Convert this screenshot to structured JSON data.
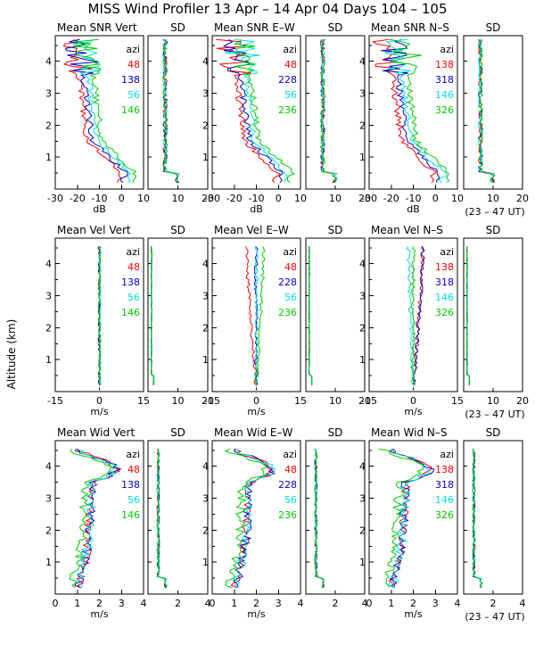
{
  "title": "MISS Wind Profiler  13 Apr – 14 Apr 04 Days 104 – 105",
  "ylabel": "Altitude (km)",
  "ut_note": "(23 – 47 UT)",
  "legend_header": "azi",
  "colors": {
    "c1": "#ff0000",
    "c2": "#0000cc",
    "c3": "#00e0e0",
    "c4": "#00cc00",
    "axis": "#000000"
  },
  "chart_data": [
    {
      "type": "line",
      "panel": "snr-vert",
      "title": "Mean SNR Vert",
      "xlabel": "dB",
      "xlim": [
        -30,
        10
      ],
      "xticks": [
        -30,
        -20,
        -10,
        0,
        10
      ],
      "ylim": [
        0,
        4.8
      ],
      "yticks": [
        1,
        2,
        3,
        4
      ],
      "legend": [
        "48",
        "138",
        "56",
        "146"
      ],
      "shape": "snr",
      "sd": {
        "title": "SD",
        "xlim": [
          0,
          20
        ],
        "xticks": [
          10,
          20
        ],
        "base": 5
      }
    },
    {
      "type": "line",
      "panel": "snr-ew",
      "title": "Mean SNR E–W",
      "xlabel": "dB",
      "xlim": [
        -30,
        10
      ],
      "xticks": [
        -30,
        -20,
        -10,
        0,
        10
      ],
      "ylim": [
        0,
        4.8
      ],
      "yticks": [
        1,
        2,
        3,
        4
      ],
      "legend": [
        "48",
        "228",
        "56",
        "236"
      ],
      "shape": "snr",
      "sd": {
        "title": "SD",
        "xlim": [
          0,
          20
        ],
        "xticks": [
          10,
          20
        ],
        "base": 5
      }
    },
    {
      "type": "line",
      "panel": "snr-ns",
      "title": "Mean SNR N–S",
      "xlabel": "dB",
      "xlim": [
        -30,
        10
      ],
      "xticks": [
        -30,
        -20,
        -10,
        0,
        10
      ],
      "ylim": [
        0,
        4.8
      ],
      "yticks": [
        1,
        2,
        3,
        4
      ],
      "legend": [
        "138",
        "318",
        "146",
        "326"
      ],
      "shape": "snr",
      "sd": {
        "title": "SD",
        "xlim": [
          0,
          20
        ],
        "xticks": [
          10,
          20
        ],
        "base": 5
      }
    },
    {
      "type": "line",
      "panel": "vel-vert",
      "title": "Mean Vel Vert",
      "xlabel": "m/s",
      "xlim": [
        -15,
        15
      ],
      "xticks": [
        -15,
        0,
        15
      ],
      "ylim": [
        0,
        4.8
      ],
      "yticks": [
        1,
        2,
        3,
        4
      ],
      "legend": [
        "48",
        "138",
        "56",
        "146"
      ],
      "shape": "vel0",
      "sd": {
        "title": "SD",
        "xlim": [
          0,
          20
        ],
        "xticks": [
          10,
          20
        ],
        "base": 1
      }
    },
    {
      "type": "line",
      "panel": "vel-ew",
      "title": "Mean Vel E–W",
      "xlabel": "m/s",
      "xlim": [
        -15,
        15
      ],
      "xticks": [
        -15,
        0,
        15
      ],
      "ylim": [
        0,
        4.8
      ],
      "yticks": [
        1,
        2,
        3,
        4
      ],
      "legend": [
        "48",
        "228",
        "56",
        "236"
      ],
      "shape": "vel1",
      "sd": {
        "title": "SD",
        "xlim": [
          0,
          20
        ],
        "xticks": [
          10,
          20
        ],
        "base": 1
      }
    },
    {
      "type": "line",
      "panel": "vel-ns",
      "title": "Mean Vel N–S",
      "xlabel": "m/s",
      "xlim": [
        -15,
        15
      ],
      "xticks": [
        -15,
        0,
        15
      ],
      "ylim": [
        0,
        4.8
      ],
      "yticks": [
        1,
        2,
        3,
        4
      ],
      "legend": [
        "138",
        "318",
        "146",
        "326"
      ],
      "shape": "vel2",
      "sd": {
        "title": "SD",
        "xlim": [
          0,
          20
        ],
        "xticks": [
          10,
          20
        ],
        "base": 1
      }
    },
    {
      "type": "line",
      "panel": "wid-vert",
      "title": "Mean Wid Vert",
      "xlabel": "m/s",
      "xlim": [
        0,
        4
      ],
      "xticks": [
        0,
        1,
        2,
        3,
        4
      ],
      "ylim": [
        0,
        4.8
      ],
      "yticks": [
        1,
        2,
        3,
        4
      ],
      "legend": [
        "48",
        "138",
        "56",
        "146"
      ],
      "shape": "wid",
      "sd": {
        "title": "SD",
        "xlim": [
          0,
          4
        ],
        "xticks": [
          2,
          4
        ],
        "base": 0.6
      }
    },
    {
      "type": "line",
      "panel": "wid-ew",
      "title": "Mean Wid E–W",
      "xlabel": "m/s",
      "xlim": [
        0,
        4
      ],
      "xticks": [
        0,
        1,
        2,
        3,
        4
      ],
      "ylim": [
        0,
        4.8
      ],
      "yticks": [
        1,
        2,
        3,
        4
      ],
      "legend": [
        "48",
        "228",
        "56",
        "236"
      ],
      "shape": "wid",
      "sd": {
        "title": "SD",
        "xlim": [
          0,
          4
        ],
        "xticks": [
          2,
          4
        ],
        "base": 0.6
      }
    },
    {
      "type": "line",
      "panel": "wid-ns",
      "title": "Mean Wid N–S",
      "xlabel": "m/s",
      "xlim": [
        0,
        4
      ],
      "xticks": [
        0,
        1,
        2,
        3,
        4
      ],
      "ylim": [
        0,
        4.8
      ],
      "yticks": [
        1,
        2,
        3,
        4
      ],
      "legend": [
        "138",
        "318",
        "146",
        "326"
      ],
      "shape": "wid",
      "sd": {
        "title": "SD",
        "xlim": [
          0,
          4
        ],
        "xticks": [
          2,
          4
        ],
        "base": 0.6
      }
    }
  ]
}
